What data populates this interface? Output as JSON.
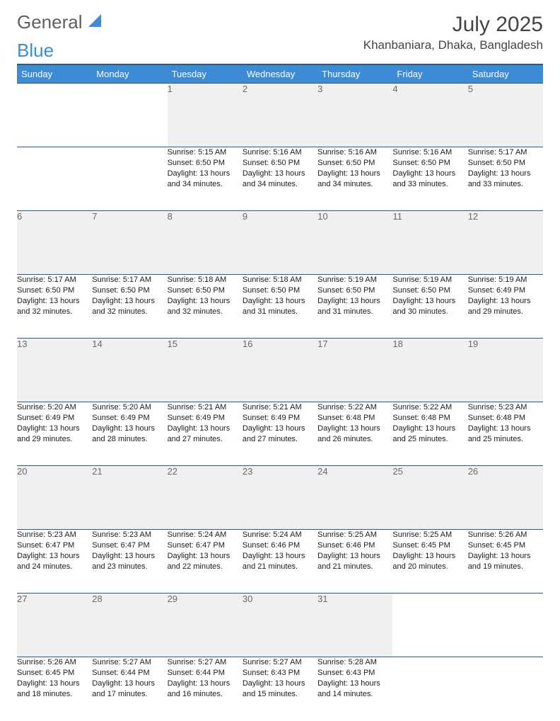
{
  "logo": {
    "text1": "General",
    "text2": "Blue"
  },
  "title": "July 2025",
  "location": "Khanbaniara, Dhaka, Bangladesh",
  "colors": {
    "header_bg": "#3d8bd4",
    "header_border": "#2a5c8a",
    "daynum_bg": "#f0f0f0",
    "text": "#1a1a1a"
  },
  "day_headers": [
    "Sunday",
    "Monday",
    "Tuesday",
    "Wednesday",
    "Thursday",
    "Friday",
    "Saturday"
  ],
  "weeks": [
    [
      null,
      null,
      {
        "d": "1",
        "sr": "5:15 AM",
        "ss": "6:50 PM",
        "dl": "13 hours and 34 minutes."
      },
      {
        "d": "2",
        "sr": "5:16 AM",
        "ss": "6:50 PM",
        "dl": "13 hours and 34 minutes."
      },
      {
        "d": "3",
        "sr": "5:16 AM",
        "ss": "6:50 PM",
        "dl": "13 hours and 34 minutes."
      },
      {
        "d": "4",
        "sr": "5:16 AM",
        "ss": "6:50 PM",
        "dl": "13 hours and 33 minutes."
      },
      {
        "d": "5",
        "sr": "5:17 AM",
        "ss": "6:50 PM",
        "dl": "13 hours and 33 minutes."
      }
    ],
    [
      {
        "d": "6",
        "sr": "5:17 AM",
        "ss": "6:50 PM",
        "dl": "13 hours and 32 minutes."
      },
      {
        "d": "7",
        "sr": "5:17 AM",
        "ss": "6:50 PM",
        "dl": "13 hours and 32 minutes."
      },
      {
        "d": "8",
        "sr": "5:18 AM",
        "ss": "6:50 PM",
        "dl": "13 hours and 32 minutes."
      },
      {
        "d": "9",
        "sr": "5:18 AM",
        "ss": "6:50 PM",
        "dl": "13 hours and 31 minutes."
      },
      {
        "d": "10",
        "sr": "5:19 AM",
        "ss": "6:50 PM",
        "dl": "13 hours and 31 minutes."
      },
      {
        "d": "11",
        "sr": "5:19 AM",
        "ss": "6:50 PM",
        "dl": "13 hours and 30 minutes."
      },
      {
        "d": "12",
        "sr": "5:19 AM",
        "ss": "6:49 PM",
        "dl": "13 hours and 29 minutes."
      }
    ],
    [
      {
        "d": "13",
        "sr": "5:20 AM",
        "ss": "6:49 PM",
        "dl": "13 hours and 29 minutes."
      },
      {
        "d": "14",
        "sr": "5:20 AM",
        "ss": "6:49 PM",
        "dl": "13 hours and 28 minutes."
      },
      {
        "d": "15",
        "sr": "5:21 AM",
        "ss": "6:49 PM",
        "dl": "13 hours and 27 minutes."
      },
      {
        "d": "16",
        "sr": "5:21 AM",
        "ss": "6:49 PM",
        "dl": "13 hours and 27 minutes."
      },
      {
        "d": "17",
        "sr": "5:22 AM",
        "ss": "6:48 PM",
        "dl": "13 hours and 26 minutes."
      },
      {
        "d": "18",
        "sr": "5:22 AM",
        "ss": "6:48 PM",
        "dl": "13 hours and 25 minutes."
      },
      {
        "d": "19",
        "sr": "5:23 AM",
        "ss": "6:48 PM",
        "dl": "13 hours and 25 minutes."
      }
    ],
    [
      {
        "d": "20",
        "sr": "5:23 AM",
        "ss": "6:47 PM",
        "dl": "13 hours and 24 minutes."
      },
      {
        "d": "21",
        "sr": "5:23 AM",
        "ss": "6:47 PM",
        "dl": "13 hours and 23 minutes."
      },
      {
        "d": "22",
        "sr": "5:24 AM",
        "ss": "6:47 PM",
        "dl": "13 hours and 22 minutes."
      },
      {
        "d": "23",
        "sr": "5:24 AM",
        "ss": "6:46 PM",
        "dl": "13 hours and 21 minutes."
      },
      {
        "d": "24",
        "sr": "5:25 AM",
        "ss": "6:46 PM",
        "dl": "13 hours and 21 minutes."
      },
      {
        "d": "25",
        "sr": "5:25 AM",
        "ss": "6:45 PM",
        "dl": "13 hours and 20 minutes."
      },
      {
        "d": "26",
        "sr": "5:26 AM",
        "ss": "6:45 PM",
        "dl": "13 hours and 19 minutes."
      }
    ],
    [
      {
        "d": "27",
        "sr": "5:26 AM",
        "ss": "6:45 PM",
        "dl": "13 hours and 18 minutes."
      },
      {
        "d": "28",
        "sr": "5:27 AM",
        "ss": "6:44 PM",
        "dl": "13 hours and 17 minutes."
      },
      {
        "d": "29",
        "sr": "5:27 AM",
        "ss": "6:44 PM",
        "dl": "13 hours and 16 minutes."
      },
      {
        "d": "30",
        "sr": "5:27 AM",
        "ss": "6:43 PM",
        "dl": "13 hours and 15 minutes."
      },
      {
        "d": "31",
        "sr": "5:28 AM",
        "ss": "6:43 PM",
        "dl": "13 hours and 14 minutes."
      },
      null,
      null
    ]
  ],
  "labels": {
    "sunrise": "Sunrise: ",
    "sunset": "Sunset: ",
    "daylight": "Daylight: "
  }
}
